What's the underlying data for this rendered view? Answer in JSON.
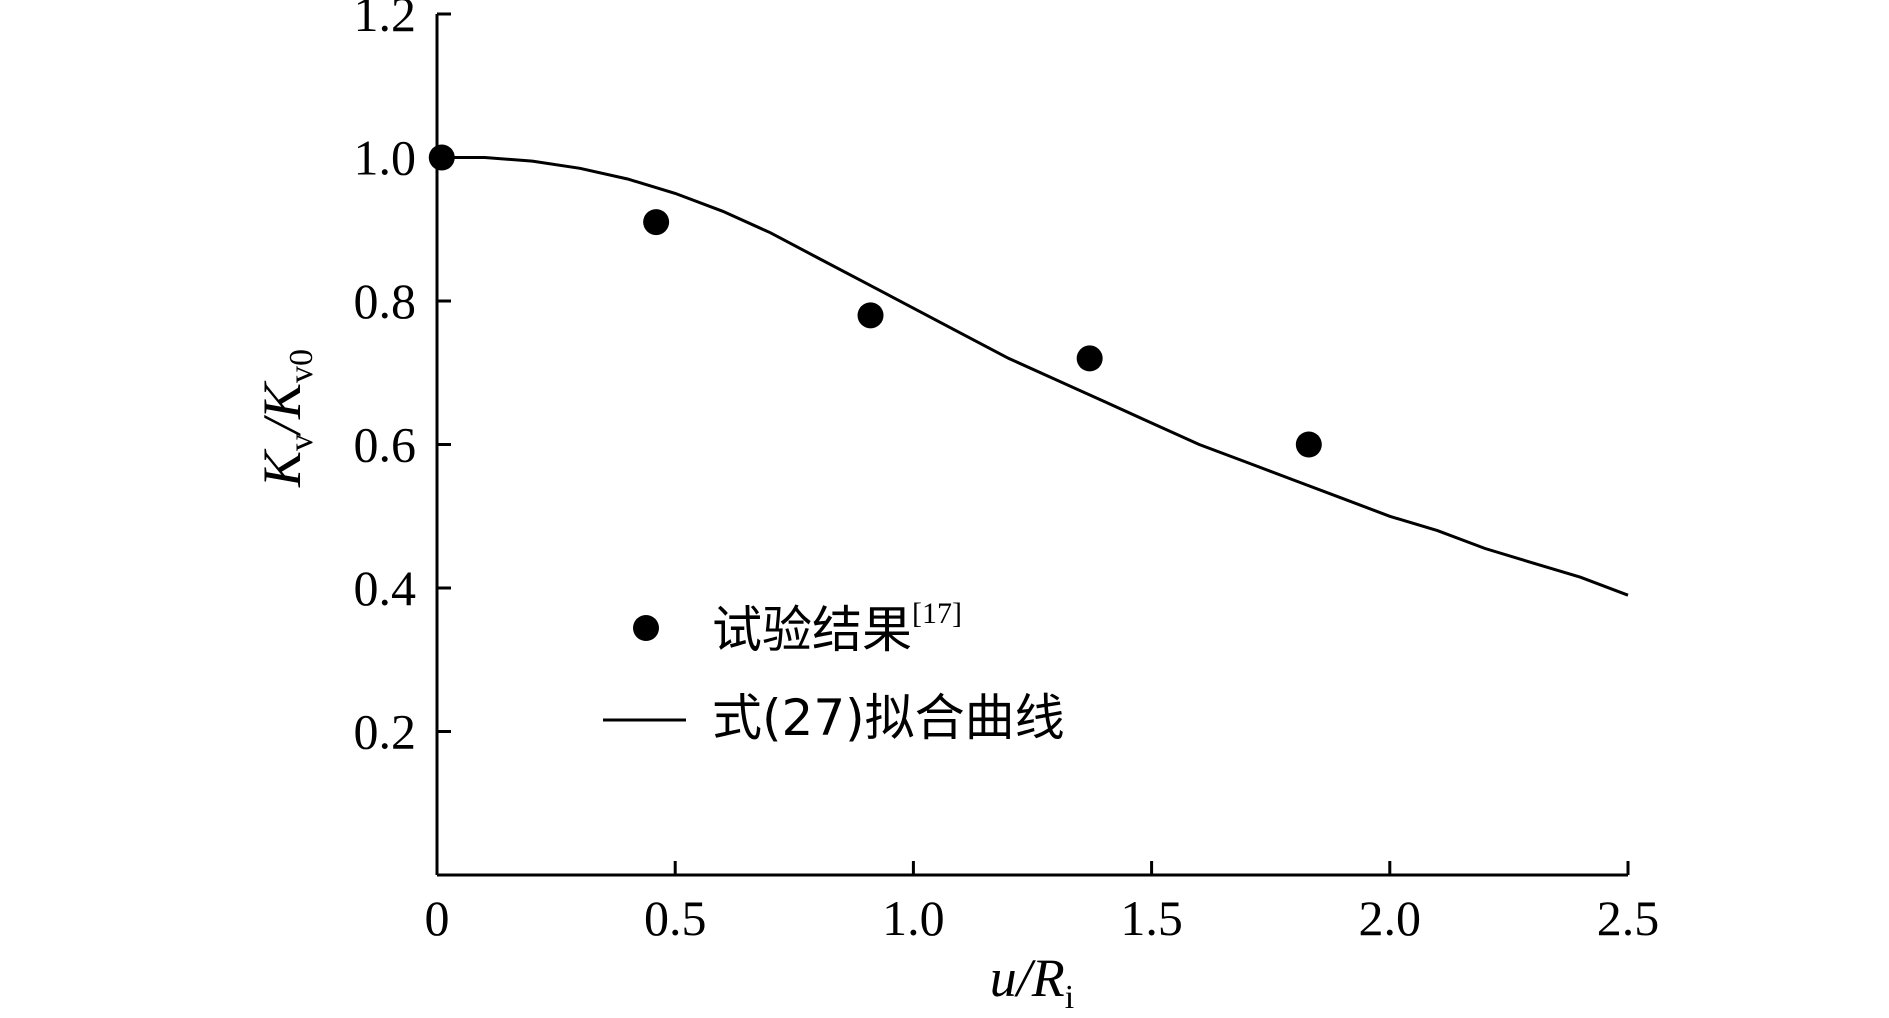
{
  "chart_data": {
    "type": "scatter",
    "xlabel": {
      "main": "u/R",
      "sub": "i"
    },
    "ylabel": {
      "k1": "K",
      "s1": "v",
      "slash": "/",
      "k2": "K",
      "s2": "v0"
    },
    "xlim": [
      0,
      2.5
    ],
    "ylim": [
      0,
      1.2
    ],
    "x_ticks": [
      0,
      0.5,
      1.0,
      1.5,
      2.0,
      2.5
    ],
    "x_tick_labels": [
      "0",
      "0.5",
      "1.0",
      "1.5",
      "2.0",
      "2.5"
    ],
    "y_ticks": [
      0.2,
      0.4,
      0.6,
      0.8,
      1.0,
      1.2
    ],
    "y_tick_labels": [
      "0.2",
      "0.4",
      "0.6",
      "0.8",
      "1.0",
      "1.2"
    ],
    "grid": false,
    "legend_position": "lower-left",
    "series": [
      {
        "name": "试验结果",
        "name_sup": "[17]",
        "kind": "scatter",
        "marker": "filled-circle",
        "color": "#000000",
        "points": [
          {
            "x": 0.01,
            "y": 1.0
          },
          {
            "x": 0.46,
            "y": 0.91
          },
          {
            "x": 0.91,
            "y": 0.78
          },
          {
            "x": 1.37,
            "y": 0.72
          },
          {
            "x": 1.83,
            "y": 0.6
          }
        ]
      },
      {
        "name": "式(27)拟合曲线",
        "kind": "line",
        "color": "#000000",
        "points": [
          {
            "x": 0.0,
            "y": 1.0
          },
          {
            "x": 0.1,
            "y": 1.0
          },
          {
            "x": 0.2,
            "y": 0.995
          },
          {
            "x": 0.3,
            "y": 0.985
          },
          {
            "x": 0.4,
            "y": 0.97
          },
          {
            "x": 0.5,
            "y": 0.95
          },
          {
            "x": 0.6,
            "y": 0.925
          },
          {
            "x": 0.7,
            "y": 0.895
          },
          {
            "x": 0.8,
            "y": 0.86
          },
          {
            "x": 0.9,
            "y": 0.825
          },
          {
            "x": 1.0,
            "y": 0.79
          },
          {
            "x": 1.1,
            "y": 0.755
          },
          {
            "x": 1.2,
            "y": 0.72
          },
          {
            "x": 1.3,
            "y": 0.69
          },
          {
            "x": 1.4,
            "y": 0.66
          },
          {
            "x": 1.5,
            "y": 0.63
          },
          {
            "x": 1.6,
            "y": 0.6
          },
          {
            "x": 1.7,
            "y": 0.575
          },
          {
            "x": 1.8,
            "y": 0.55
          },
          {
            "x": 1.9,
            "y": 0.525
          },
          {
            "x": 2.0,
            "y": 0.5
          },
          {
            "x": 2.1,
            "y": 0.48
          },
          {
            "x": 2.2,
            "y": 0.455
          },
          {
            "x": 2.3,
            "y": 0.435
          },
          {
            "x": 2.4,
            "y": 0.415
          },
          {
            "x": 2.5,
            "y": 0.39
          }
        ]
      }
    ]
  }
}
